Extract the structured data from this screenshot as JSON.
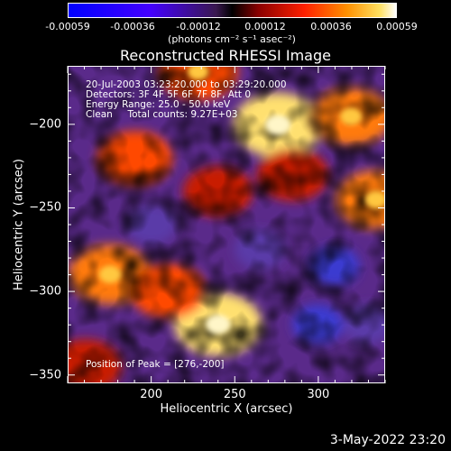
{
  "colorbar": {
    "ticks": [
      "-0.00059",
      "-0.00036",
      "-0.00012",
      "0.00012",
      "0.00036",
      "0.00059"
    ],
    "unit": "(photons cm⁻² s⁻¹ asec⁻²)"
  },
  "chart_data": {
    "type": "heatmap",
    "title": "Reconstructed RHESSI Image",
    "xlabel": "Heliocentric X (arcsec)",
    "ylabel": "Heliocentric Y (arcsec)",
    "xlim": [
      150,
      340
    ],
    "ylim": [
      -355,
      -165
    ],
    "xticks": [
      "200",
      "250",
      "300"
    ],
    "xtick_values": [
      200,
      250,
      300
    ],
    "yticks": [
      "-200",
      "-250",
      "-300",
      "-350"
    ],
    "ytick_values": [
      -200,
      -250,
      -300,
      -350
    ],
    "color_range": [
      -0.00059,
      0.00059
    ],
    "annotations": [
      "20-Jul-2003 03:23:20.000 to 03:29:20.000",
      "Detectors: 3F 4F 5F 6F 7F 8F, Att 0",
      "Energy Range: 25.0 - 50.0 keV",
      "Clean     Total counts: 9.27E+03"
    ],
    "peak_label": "Position of Peak = [276,-200]",
    "peak": [
      276,
      -200
    ],
    "bright_regions": [
      {
        "x": 276,
        "y": -200,
        "level": 1.0
      },
      {
        "x": 190,
        "y": -220,
        "level": 0.6
      },
      {
        "x": 228,
        "y": -168,
        "level": 0.7
      },
      {
        "x": 320,
        "y": -195,
        "level": 0.75
      },
      {
        "x": 335,
        "y": -245,
        "level": 0.75
      },
      {
        "x": 175,
        "y": -290,
        "level": 0.8
      },
      {
        "x": 240,
        "y": -320,
        "level": 0.95
      },
      {
        "x": 210,
        "y": -300,
        "level": 0.6
      },
      {
        "x": 160,
        "y": -345,
        "level": 0.55
      },
      {
        "x": 285,
        "y": -230,
        "level": 0.5
      },
      {
        "x": 240,
        "y": -240,
        "level": 0.45
      }
    ],
    "dark_regions": [
      {
        "x": 310,
        "y": -285,
        "level": -0.6
      },
      {
        "x": 300,
        "y": -320,
        "level": -0.5
      },
      {
        "x": 330,
        "y": -320,
        "level": -0.45
      },
      {
        "x": 200,
        "y": -260,
        "level": -0.3
      },
      {
        "x": 265,
        "y": -275,
        "level": -0.35
      }
    ]
  },
  "timestamp": "3-May-2022 23:20"
}
